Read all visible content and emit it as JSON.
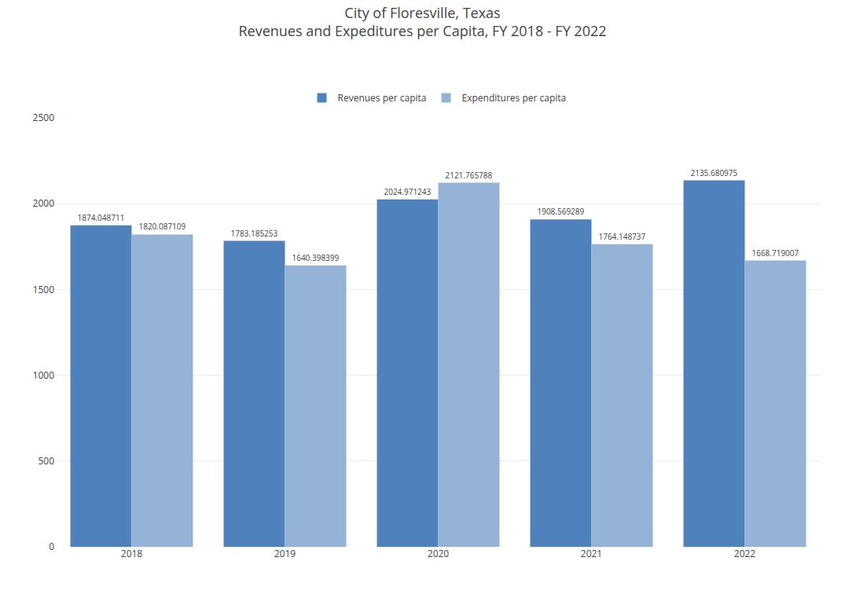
{
  "chart_data": {
    "type": "bar",
    "title": "City of Floresville, Texas",
    "subtitle": "Revenues and Expeditures per Capita, FY 2018 - FY 2022",
    "categories": [
      "2018",
      "2019",
      "2020",
      "2021",
      "2022"
    ],
    "series": [
      {
        "name": "Revenues per capita",
        "color": "#4F81BD",
        "values": [
          1874.048711,
          1783.185253,
          2024.971243,
          1908.569289,
          2135.680975
        ]
      },
      {
        "name": "Expenditures per capita",
        "color": "#95B3D7",
        "values": [
          1820.087109,
          1640.398399,
          2121.765788,
          1764.148737,
          1668.719007
        ]
      }
    ],
    "ylim": [
      0,
      2500
    ],
    "yticks": [
      0,
      500,
      1000,
      1500,
      2000,
      2500
    ],
    "grid": true,
    "legend": "upper center",
    "data_labels": true
  }
}
